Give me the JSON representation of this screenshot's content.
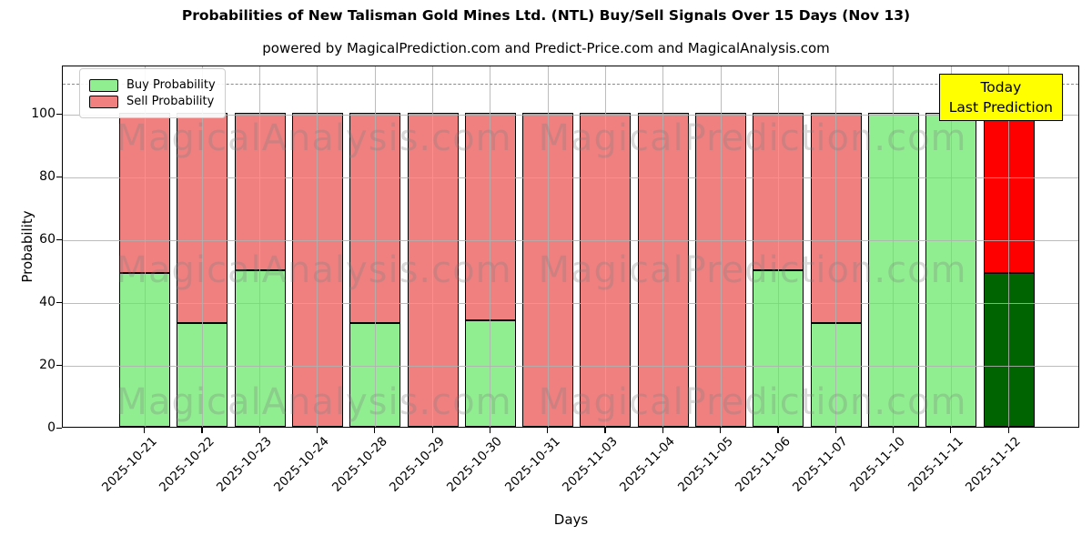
{
  "chart_data": {
    "type": "bar",
    "stacked": true,
    "title": "Probabilities of New Talisman Gold Mines Ltd. (NTL) Buy/Sell Signals Over 15 Days (Nov 13)",
    "subtitle": "powered by MagicalPrediction.com and Predict-Price.com and MagicalAnalysis.com",
    "xlabel": "Days",
    "ylabel": "Probability",
    "categories": [
      "2025-10-21",
      "2025-10-22",
      "2025-10-23",
      "2025-10-24",
      "2025-10-28",
      "2025-10-29",
      "2025-10-30",
      "2025-10-31",
      "2025-11-03",
      "2025-11-04",
      "2025-11-05",
      "2025-11-06",
      "2025-11-07",
      "2025-11-10",
      "2025-11-11",
      "2025-11-12"
    ],
    "series": [
      {
        "name": "Buy Probability",
        "color": "#90ee90",
        "values": [
          49,
          33,
          50,
          0,
          33,
          0,
          34,
          0,
          0,
          0,
          0,
          50,
          33,
          100,
          100,
          49
        ]
      },
      {
        "name": "Sell Probability",
        "color": "#f08080",
        "values": [
          51,
          67,
          50,
          100,
          67,
          100,
          66,
          100,
          100,
          100,
          100,
          50,
          67,
          0,
          0,
          51
        ]
      }
    ],
    "today_index": 15,
    "today_colors": {
      "buy": "#006400",
      "sell": "#ff0000"
    },
    "yticks": [
      0,
      20,
      40,
      60,
      80,
      100
    ],
    "ylim": [
      0,
      115.4
    ],
    "dashed_hline_y": 110,
    "grid": true,
    "legend_position": "upper left"
  },
  "annotation": {
    "line1": "Today",
    "line2": "Last Prediction",
    "bg_color": "#ffff00"
  },
  "watermarks": {
    "left_text": "MagicalAnalysis.com",
    "right_text": "MagicalPrediction.com"
  },
  "grid_color": "#b0b0b0",
  "dashed_line_color": "#8a8a8a"
}
